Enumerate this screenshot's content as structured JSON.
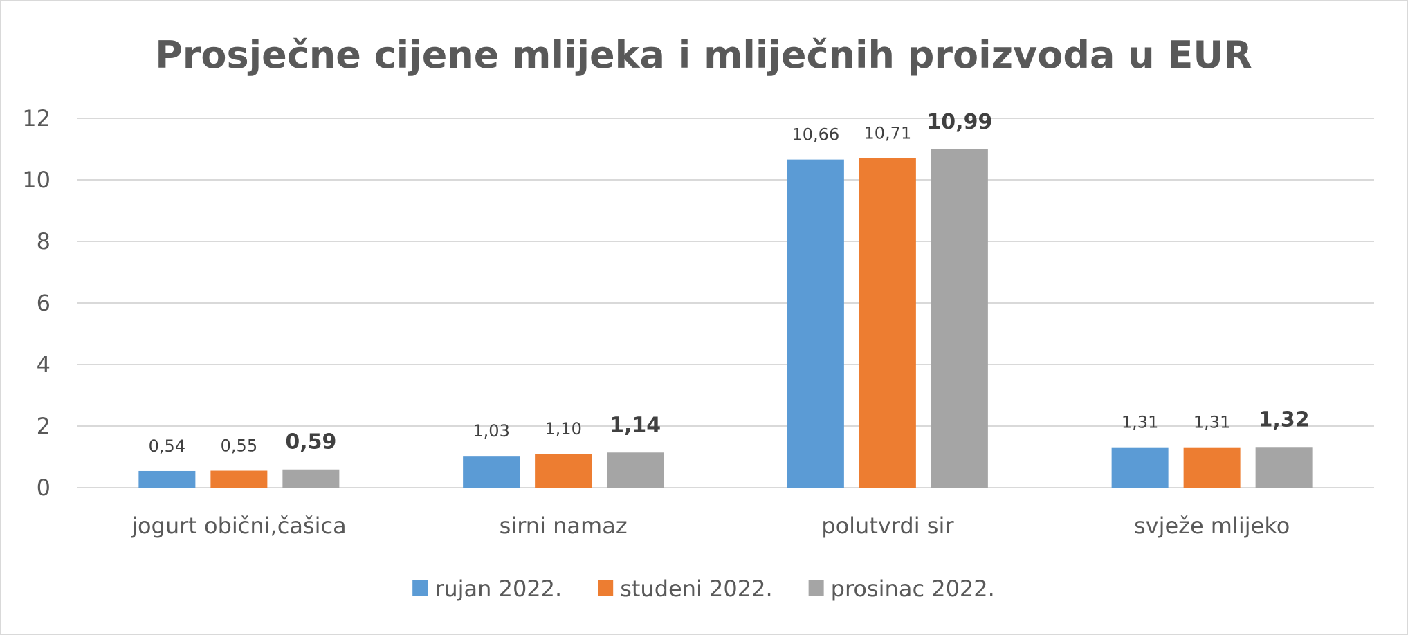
{
  "chart_data": {
    "type": "bar",
    "title": "Prosječne cijene mlijeka i mliječnih proizvoda u EUR",
    "xlabel": "",
    "ylabel": "",
    "categories": [
      "jogurt obični,čašica",
      "sirni namaz",
      "polutvrdi sir",
      "svježe mlijeko"
    ],
    "series": [
      {
        "name": "rujan 2022.",
        "color": "#5b9bd5",
        "values": [
          0.54,
          1.03,
          10.66,
          1.31
        ],
        "labels": [
          "0,54",
          "1,03",
          "10,66",
          "1,31"
        ],
        "label_bold": false
      },
      {
        "name": "studeni 2022.",
        "color": "#ed7d31",
        "values": [
          0.55,
          1.1,
          10.71,
          1.31
        ],
        "labels": [
          "0,55",
          "1,10",
          "10,71",
          "1,31"
        ],
        "label_bold": false
      },
      {
        "name": "prosinac 2022.",
        "color": "#a5a5a5",
        "values": [
          0.59,
          1.14,
          10.99,
          1.32
        ],
        "labels": [
          "0,59",
          "1,14",
          "10,99",
          "1,32"
        ],
        "label_bold": true
      }
    ],
    "ylim": [
      0,
      12
    ],
    "yticks": [
      0,
      2,
      4,
      6,
      8,
      10,
      12
    ],
    "grid": true,
    "legend": "bottom"
  }
}
